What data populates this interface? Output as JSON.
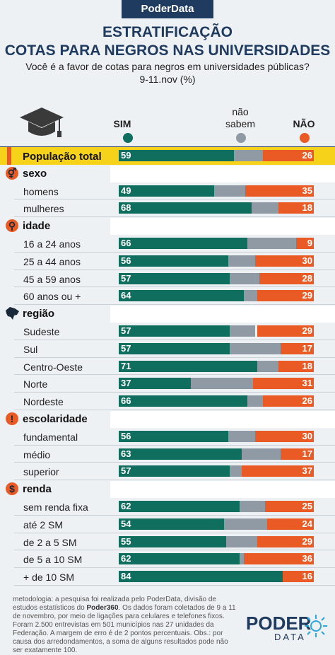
{
  "brand": "PoderData",
  "title_line1": "ESTRATIFICAÇÃO",
  "title_line2": "COTAS PARA NEGROS NAS UNIVERSIDADES",
  "subtitle_line1": "Você é a favor de cotas para negros em universidades públicas?",
  "subtitle_line2": "9-11.nov   (%)",
  "legend": {
    "sim": "SIM",
    "ns": "não\nsabem",
    "nao": "NÃO"
  },
  "colors": {
    "sim": "#0f6e5e",
    "ns": "#8f9aa4",
    "nao": "#ea5a24",
    "highlight": "#f7d21a",
    "brand": "#1f3b60"
  },
  "chart_data": {
    "type": "bar",
    "orientation": "horizontal-stacked",
    "series": [
      {
        "name": "SIM"
      },
      {
        "name": "não sabem"
      },
      {
        "name": "NÃO"
      }
    ],
    "rows": [
      {
        "kind": "total",
        "label": "População total",
        "sim": 59,
        "ns": 15,
        "nao": 26
      },
      {
        "kind": "category",
        "label": "sexo",
        "icon": "gender-icon"
      },
      {
        "kind": "row",
        "label": "homens",
        "sim": 49,
        "ns": 16,
        "nao": 35
      },
      {
        "kind": "row",
        "label": "mulheres",
        "sim": 68,
        "ns": 14,
        "nao": 18
      },
      {
        "kind": "category",
        "label": "idade",
        "icon": "person-icon"
      },
      {
        "kind": "row",
        "label": "16 a 24 anos",
        "sim": 66,
        "ns": 25,
        "nao": 9
      },
      {
        "kind": "row",
        "label": "25 a 44 anos",
        "sim": 56,
        "ns": 14,
        "nao": 30
      },
      {
        "kind": "row",
        "label": "45 a 59 anos",
        "sim": 57,
        "ns": 15,
        "nao": 28
      },
      {
        "kind": "row",
        "label": "60 anos ou +",
        "sim": 64,
        "ns": 8,
        "nao": 29
      },
      {
        "kind": "category",
        "label": "região",
        "icon": "brazil-map-icon"
      },
      {
        "kind": "row",
        "label": "Sudeste",
        "sim": 57,
        "ns": 13,
        "nao": 29
      },
      {
        "kind": "row",
        "label": "Sul",
        "sim": 57,
        "ns": 26,
        "nao": 17
      },
      {
        "kind": "row",
        "label": "Centro-Oeste",
        "sim": 71,
        "ns": 11,
        "nao": 18
      },
      {
        "kind": "row",
        "label": "Norte",
        "sim": 37,
        "ns": 33,
        "nao": 31
      },
      {
        "kind": "row",
        "label": "Nordeste",
        "sim": 66,
        "ns": 8,
        "nao": 26
      },
      {
        "kind": "category",
        "label": "escolaridade",
        "icon": "exclamation-icon"
      },
      {
        "kind": "row",
        "label": "fundamental",
        "sim": 56,
        "ns": 14,
        "nao": 30
      },
      {
        "kind": "row",
        "label": "médio",
        "sim": 63,
        "ns": 20,
        "nao": 17
      },
      {
        "kind": "row",
        "label": "superior",
        "sim": 57,
        "ns": 7,
        "nao": 37
      },
      {
        "kind": "category",
        "label": "renda",
        "icon": "dollar-icon"
      },
      {
        "kind": "row",
        "label": "sem renda fixa",
        "sim": 62,
        "ns": 13,
        "nao": 25
      },
      {
        "kind": "row",
        "label": "até 2 SM",
        "sim": 54,
        "ns": 22,
        "nao": 24
      },
      {
        "kind": "row",
        "label": "de 2 a 5 SM",
        "sim": 55,
        "ns": 16,
        "nao": 29
      },
      {
        "kind": "row",
        "label": "de 5 a 10 SM",
        "sim": 62,
        "ns": 2,
        "nao": 36
      },
      {
        "kind": "row",
        "label": "+ de 10 SM",
        "sim": 84,
        "ns": 0,
        "nao": 16
      }
    ]
  },
  "footer": {
    "text_a": "metodologia: a pesquisa foi realizada pelo PoderData, divisão de estudos estatísticos do ",
    "bold": "Poder360",
    "text_b": ". Os dados foram coletados de 9 a 11 de novembro, por meio de ligações para celulares e telefones fixos. Foram 2.500 entrevistas em 501 municípios nas 27 unidades da Federação. A margem de erro é de 2 pontos percentuais. Obs.: por causa dos arredondamentos, a soma de alguns resultados pode não ser exatamente 100."
  },
  "logo": {
    "main": "PODER",
    "sub": "DATA"
  }
}
